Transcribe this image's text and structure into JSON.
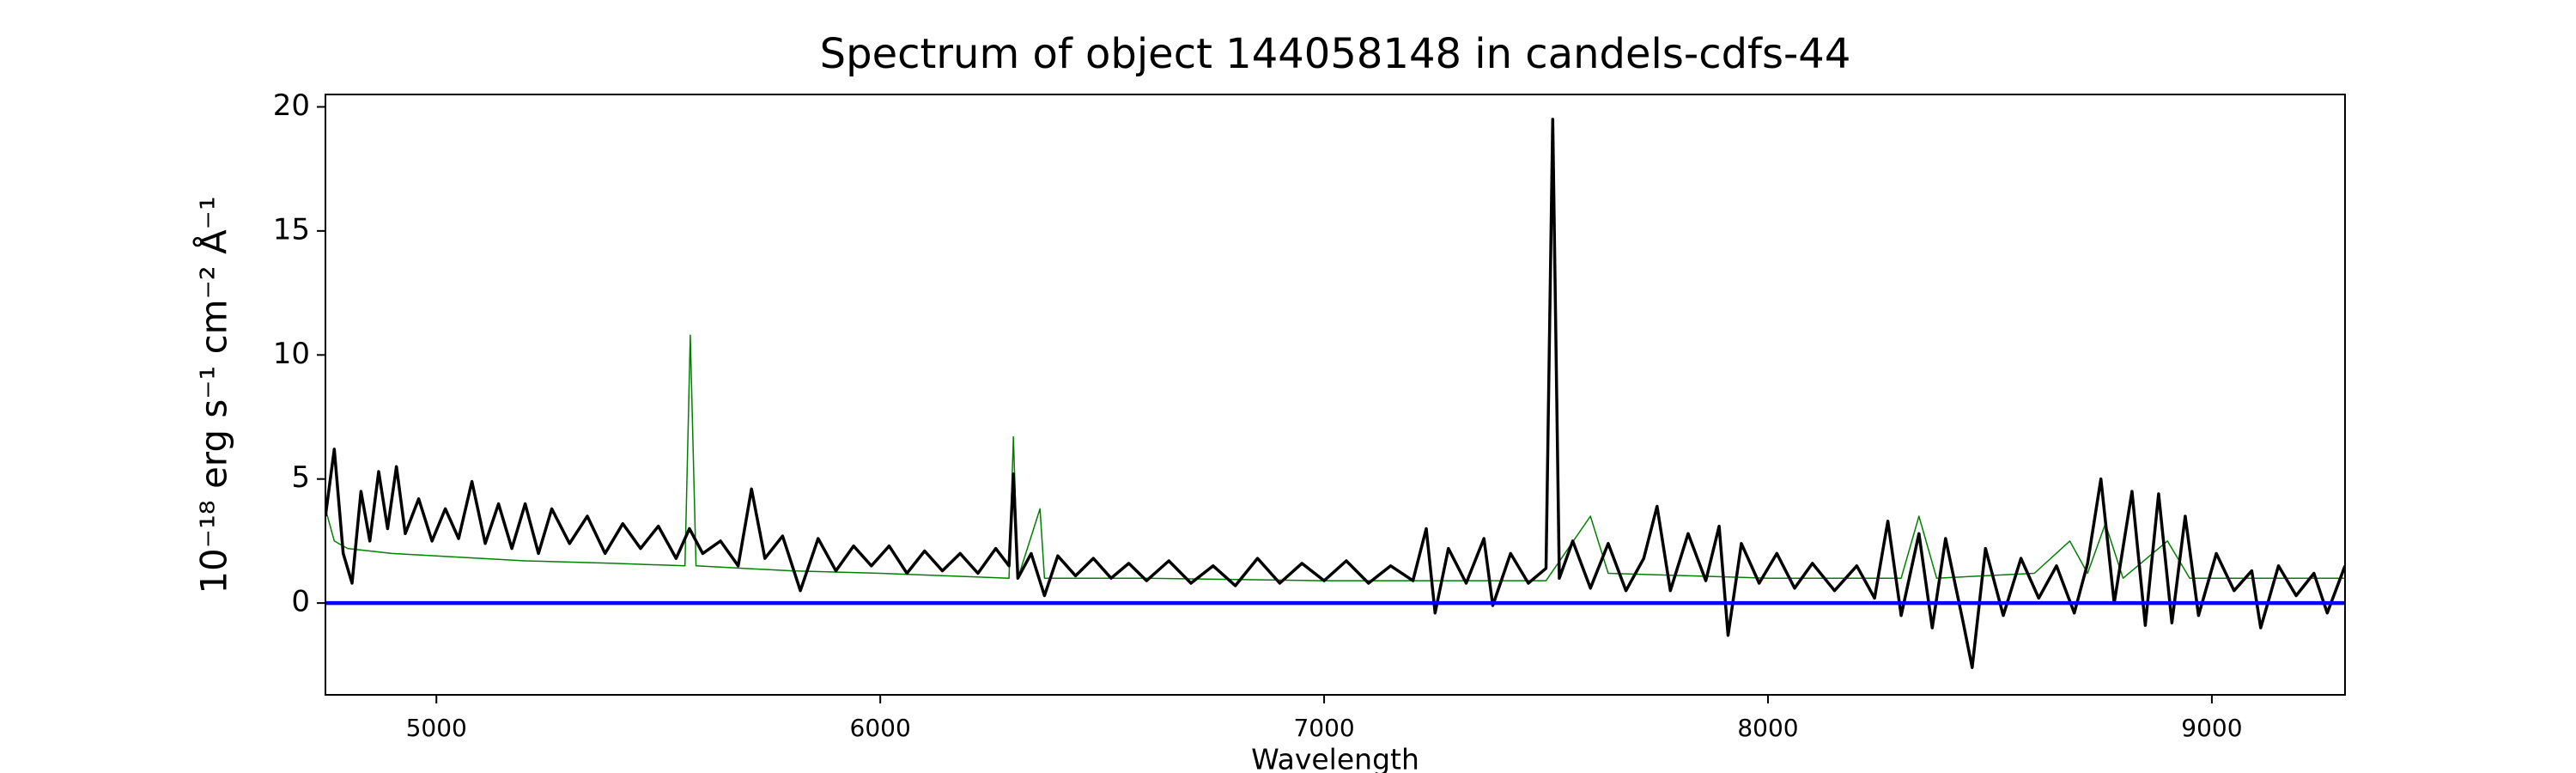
{
  "chart_data": {
    "type": "line",
    "title": "Spectrum of object 144058148 in candels-cdfs-44",
    "xlabel": "Wavelength",
    "ylabel": "10⁻¹⁸ erg s⁻¹ cm⁻² Å⁻¹",
    "xlim": [
      4750,
      9300
    ],
    "xticks": [
      5000,
      6000,
      7000,
      8000,
      9000
    ],
    "ylim": [
      -3.7,
      20.5
    ],
    "yticks": [
      0,
      5,
      10,
      15,
      20
    ],
    "grid": false,
    "series": [
      {
        "color": "#008000",
        "width": 1.5,
        "x": [
          4750,
          4770,
          4800,
          4900,
          5000,
          5200,
          5400,
          5560,
          5572,
          5585,
          5800,
          6000,
          6290,
          6300,
          6310,
          6360,
          6370,
          6600,
          7000,
          7500,
          7600,
          7640,
          8000,
          8300,
          8340,
          8380,
          8600,
          8680,
          8720,
          8760,
          8800,
          8900,
          8950,
          9300
        ],
        "values": [
          3.8,
          2.5,
          2.2,
          2.0,
          1.9,
          1.7,
          1.6,
          1.5,
          10.8,
          1.5,
          1.3,
          1.2,
          1.0,
          6.7,
          1.0,
          3.8,
          1.0,
          1.0,
          0.9,
          0.9,
          3.5,
          1.2,
          1.0,
          1.0,
          3.5,
          1.0,
          1.2,
          2.5,
          1.2,
          3.2,
          1.0,
          2.5,
          1.0,
          1.0
        ]
      },
      {
        "color": "#000000",
        "width": 3.5,
        "x": [
          4750,
          4770,
          4790,
          4810,
          4830,
          4850,
          4870,
          4890,
          4910,
          4930,
          4960,
          4990,
          5020,
          5050,
          5080,
          5110,
          5140,
          5170,
          5200,
          5230,
          5260,
          5300,
          5340,
          5380,
          5420,
          5460,
          5500,
          5540,
          5570,
          5600,
          5640,
          5680,
          5710,
          5740,
          5780,
          5820,
          5860,
          5900,
          5940,
          5980,
          6020,
          6060,
          6100,
          6140,
          6180,
          6220,
          6260,
          6290,
          6300,
          6310,
          6340,
          6370,
          6400,
          6440,
          6480,
          6520,
          6560,
          6600,
          6650,
          6700,
          6750,
          6800,
          6850,
          6900,
          6950,
          7000,
          7050,
          7100,
          7150,
          7200,
          7230,
          7250,
          7280,
          7320,
          7360,
          7380,
          7420,
          7460,
          7500,
          7515,
          7530,
          7560,
          7600,
          7640,
          7680,
          7720,
          7750,
          7780,
          7820,
          7860,
          7890,
          7910,
          7940,
          7980,
          8020,
          8060,
          8100,
          8150,
          8200,
          8240,
          8270,
          8300,
          8340,
          8370,
          8400,
          8440,
          8460,
          8490,
          8530,
          8570,
          8610,
          8650,
          8690,
          8720,
          8750,
          8780,
          8820,
          8850,
          8880,
          8910,
          8940,
          8970,
          9010,
          9050,
          9090,
          9110,
          9150,
          9190,
          9230,
          9260,
          9300
        ],
        "values": [
          3.5,
          6.2,
          2.0,
          0.8,
          4.5,
          2.5,
          5.3,
          3.0,
          5.5,
          2.8,
          4.2,
          2.5,
          3.8,
          2.6,
          4.9,
          2.4,
          4.0,
          2.2,
          4.0,
          2.0,
          3.8,
          2.4,
          3.5,
          2.0,
          3.2,
          2.2,
          3.1,
          1.8,
          3.0,
          2.0,
          2.5,
          1.5,
          4.6,
          1.8,
          2.7,
          0.5,
          2.6,
          1.3,
          2.3,
          1.5,
          2.3,
          1.2,
          2.1,
          1.3,
          2.0,
          1.2,
          2.2,
          1.5,
          5.2,
          1.0,
          2.0,
          0.3,
          1.9,
          1.1,
          1.8,
          1.0,
          1.6,
          0.9,
          1.7,
          0.8,
          1.5,
          0.7,
          1.8,
          0.8,
          1.6,
          0.9,
          1.7,
          0.8,
          1.5,
          0.9,
          3.0,
          -0.4,
          2.2,
          0.8,
          2.6,
          -0.1,
          2.0,
          0.8,
          1.4,
          19.5,
          1.0,
          2.5,
          0.6,
          2.4,
          0.5,
          1.8,
          3.9,
          0.5,
          2.8,
          0.9,
          3.1,
          -1.3,
          2.4,
          0.8,
          2.0,
          0.6,
          1.6,
          0.5,
          1.5,
          0.2,
          3.3,
          -0.5,
          2.8,
          -1.0,
          2.6,
          -0.8,
          -2.6,
          2.2,
          -0.5,
          1.8,
          0.2,
          1.5,
          -0.4,
          1.6,
          5.0,
          0.0,
          4.5,
          -0.9,
          4.4,
          -0.8,
          3.5,
          -0.5,
          2.0,
          0.5,
          1.3,
          -1.0,
          1.5,
          0.3,
          1.2,
          -0.4,
          1.5
        ]
      },
      {
        "color": "#0000ff",
        "width": 4.5,
        "x": [
          4750,
          9300
        ],
        "values": [
          0,
          0
        ]
      }
    ]
  }
}
